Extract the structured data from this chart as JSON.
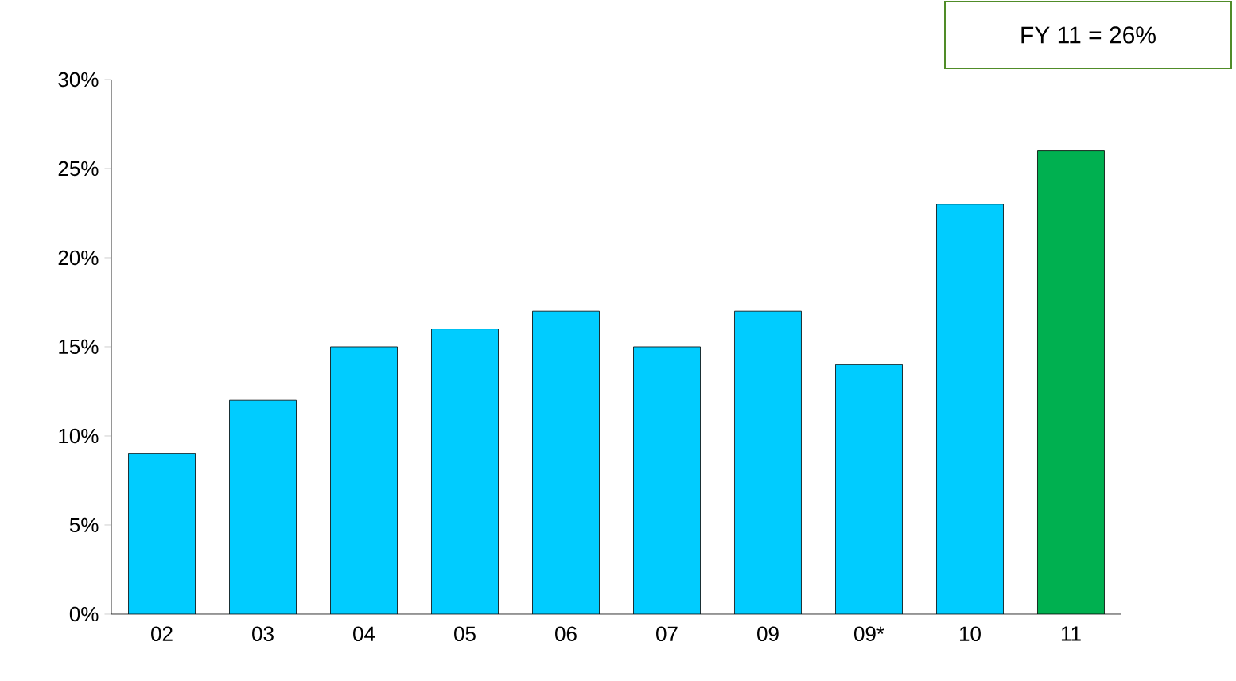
{
  "chart_data": {
    "type": "bar",
    "categories": [
      "02",
      "03",
      "04",
      "05",
      "06",
      "07",
      "09",
      "09*",
      "10",
      "11"
    ],
    "values": [
      9,
      12,
      15,
      16,
      17,
      15,
      17,
      14,
      23,
      26
    ],
    "colors": [
      "#00ccff",
      "#00ccff",
      "#00ccff",
      "#00ccff",
      "#00ccff",
      "#00ccff",
      "#00ccff",
      "#00ccff",
      "#00ccff",
      "#00b050"
    ],
    "ylim": [
      0,
      30
    ],
    "yticks": [
      {
        "value": 0,
        "label": "0%"
      },
      {
        "value": 5,
        "label": "5%"
      },
      {
        "value": 10,
        "label": "10%"
      },
      {
        "value": 15,
        "label": "15%"
      },
      {
        "value": 20,
        "label": "20%"
      },
      {
        "value": 25,
        "label": "25%"
      },
      {
        "value": 30,
        "label": "30%"
      }
    ],
    "annotations": [
      "FY 11 = 26%"
    ],
    "grid": false
  }
}
